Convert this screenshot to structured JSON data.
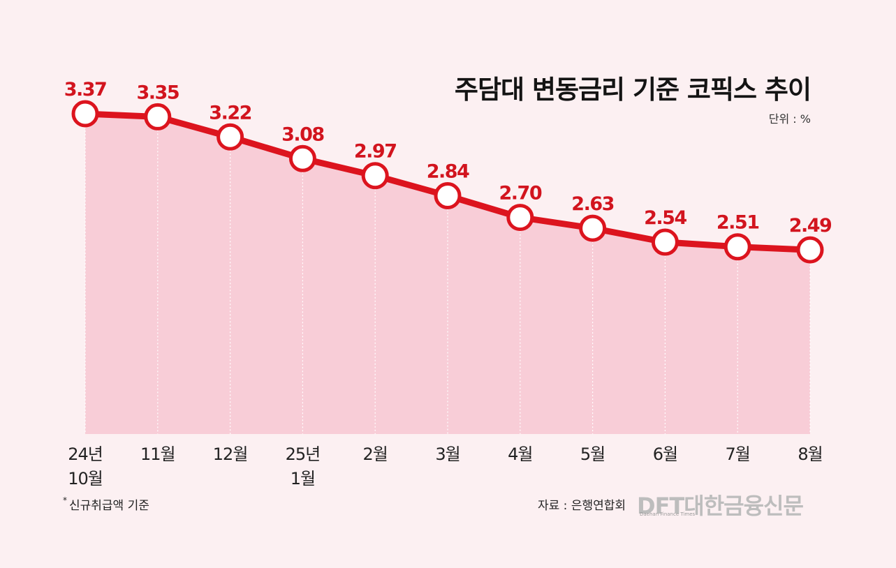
{
  "title": "주담대 변동금리 기준 코픽스 추이",
  "unit_label": "단위 : %",
  "footnote_star": "*",
  "footnote": "신규취급액 기준",
  "source": "자료 : 은행연합회",
  "logo": {
    "main": "DFT대한금융신문",
    "sub": "Daehan Finance Times"
  },
  "colors": {
    "background": "#fcf0f2",
    "area_fill": "#f8cdd7",
    "line": "#dc141e",
    "value_label": "#d2141e",
    "marker_fill": "#ffffff"
  },
  "chart_data": {
    "type": "line",
    "categories": [
      "24년 10월",
      "11월",
      "12월",
      "25년 1월",
      "2월",
      "3월",
      "4월",
      "5월",
      "6월",
      "7월",
      "8월"
    ],
    "x_tick_labels": [
      [
        "24년",
        "10월"
      ],
      [
        "11월"
      ],
      [
        "12월"
      ],
      [
        "25년",
        "1월"
      ],
      [
        "2월"
      ],
      [
        "3월"
      ],
      [
        "4월"
      ],
      [
        "5월"
      ],
      [
        "6월"
      ],
      [
        "7월"
      ],
      [
        "8월"
      ]
    ],
    "series": [
      {
        "values": [
          3.37,
          3.35,
          3.22,
          3.08,
          2.97,
          2.84,
          2.7,
          2.63,
          2.54,
          2.51,
          2.49
        ],
        "data_labels": [
          "3.37",
          "3.35",
          "3.22",
          "3.08",
          "2.97",
          "2.84",
          "2.70",
          "2.63",
          "2.54",
          "2.51",
          "2.49"
        ]
      }
    ],
    "area_fill": true,
    "markers": "hollow-circle",
    "ylim": [
      1.3,
      3.37
    ],
    "grid": false
  }
}
